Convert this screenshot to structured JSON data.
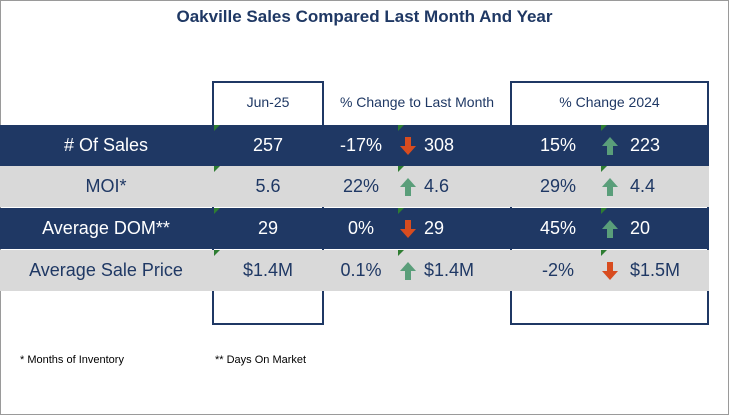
{
  "title": "Oakville Sales Compared Last Month And Year",
  "headers": {
    "current": "Jun-25",
    "change_month": "% Change to Last Month",
    "change_year": "% Change 2024"
  },
  "rows": [
    {
      "label": "# Of Sales",
      "value": "257",
      "month_pct": "-17%",
      "month_dir": "down",
      "month_prev": "308",
      "year_pct": "15%",
      "year_dir": "up",
      "year_prev": "223"
    },
    {
      "label": "MOI*",
      "value": "5.6",
      "month_pct": "22%",
      "month_dir": "up",
      "month_prev": "4.6",
      "year_pct": "29%",
      "year_dir": "up",
      "year_prev": "4.4"
    },
    {
      "label": "Average DOM**",
      "value": "29",
      "month_pct": "0%",
      "month_dir": "down",
      "month_prev": "29",
      "year_pct": "45%",
      "year_dir": "up",
      "year_prev": "20"
    },
    {
      "label": "Average Sale Price",
      "value": "$1.4M",
      "month_pct": "0.1%",
      "month_dir": "up",
      "month_prev": "$1.4M",
      "year_pct": "-2%",
      "year_dir": "down",
      "year_prev": "$1.5M"
    }
  ],
  "footnotes": {
    "moi": "* Months of Inventory",
    "dom": "** Days On Market"
  },
  "colors": {
    "navy": "#1f3864",
    "light_row": "#d9d9d9",
    "arrow_up": "#5a9e7a",
    "arrow_down": "#d84c1f"
  }
}
